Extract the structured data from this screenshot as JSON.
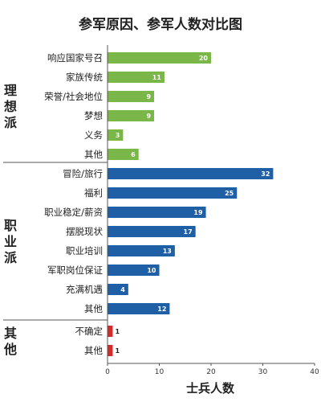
{
  "chart_data": {
    "type": "bar",
    "orientation": "horizontal",
    "title": "参军原因、参军人数对比图",
    "xlabel": "士兵人数",
    "ylabel": "",
    "xlim": [
      0,
      40
    ],
    "xticks": [
      0,
      10,
      20,
      30,
      40
    ],
    "grid": false,
    "legend": "none",
    "groups": [
      {
        "name": "理想派",
        "color": "#7ab648",
        "categories": [
          "响应国家号召",
          "家族传统",
          "荣誉/社会地位",
          "梦想",
          "义务",
          "其他"
        ],
        "values": [
          20,
          11,
          9,
          9,
          3,
          6
        ]
      },
      {
        "name": "职业派",
        "color": "#1f5fa6",
        "categories": [
          "冒险/旅行",
          "福利",
          "职业稳定/薪资",
          "摆脱现状",
          "职业培训",
          "军职岗位保证",
          "充满机遇",
          "其他"
        ],
        "values": [
          32,
          25,
          19,
          17,
          13,
          10,
          4,
          12
        ]
      },
      {
        "name": "其他",
        "color": "#d42a2a",
        "categories": [
          "不确定",
          "其他"
        ],
        "values": [
          1,
          1
        ]
      }
    ]
  }
}
